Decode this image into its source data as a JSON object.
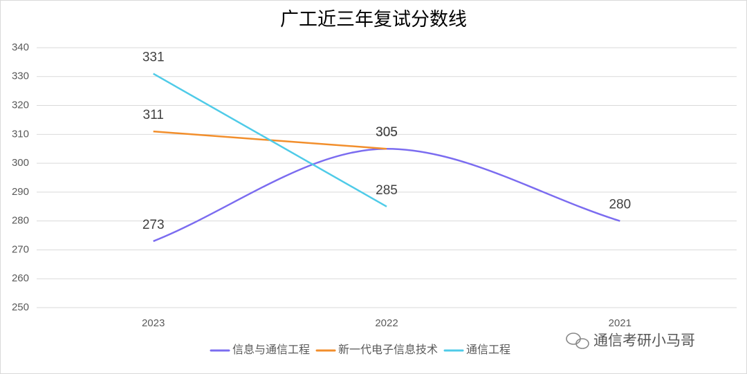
{
  "chart_data": {
    "type": "line",
    "title": "广工近三年复试分数线",
    "categories": [
      "2023",
      "2022",
      "2021"
    ],
    "series": [
      {
        "name": "信息与通信工程",
        "color": "#7b6cf0",
        "smooth": true,
        "values": [
          273,
          305,
          280
        ]
      },
      {
        "name": "新一代电子信息技术",
        "color": "#f28e2b",
        "smooth": false,
        "values": [
          311,
          305,
          null
        ]
      },
      {
        "name": "通信工程",
        "color": "#4fcbe8",
        "smooth": false,
        "values": [
          331,
          285,
          null
        ]
      }
    ],
    "ylim": [
      250,
      340
    ],
    "yticks": [
      250,
      260,
      270,
      280,
      290,
      300,
      310,
      320,
      330,
      340
    ],
    "grid": true,
    "legend": "bottom"
  },
  "watermark": "通信考研小马哥"
}
